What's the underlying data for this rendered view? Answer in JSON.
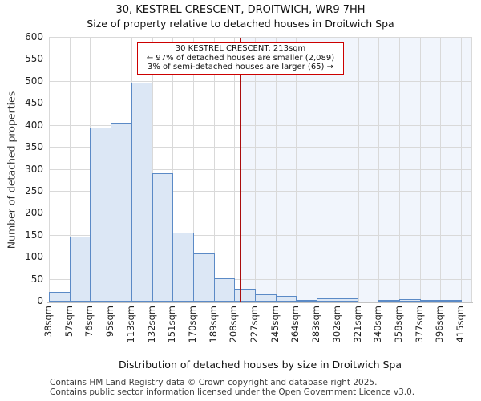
{
  "header": {
    "title": "30, KESTREL CRESCENT, DROITWICH, WR9 7HH",
    "subtitle": "Size of property relative to detached houses in Droitwich Spa"
  },
  "chart_data": {
    "type": "bar",
    "title": "30, KESTREL CRESCENT, DROITWICH, WR9 7HH",
    "subtitle": "Size of property relative to detached houses in Droitwich Spa",
    "xlabel": "Distribution of detached houses by size in Droitwich Spa",
    "ylabel": "Number of detached properties",
    "tick_labels": [
      "38sqm",
      "57sqm",
      "76sqm",
      "95sqm",
      "113sqm",
      "132sqm",
      "151sqm",
      "170sqm",
      "189sqm",
      "208sqm",
      "227sqm",
      "245sqm",
      "264sqm",
      "283sqm",
      "302sqm",
      "321sqm",
      "340sqm",
      "358sqm",
      "377sqm",
      "396sqm",
      "415sqm"
    ],
    "bin_left_edges_sqm": [
      38,
      57,
      76,
      95,
      113,
      132,
      151,
      170,
      189,
      208,
      227,
      245,
      264,
      283,
      302,
      321,
      340,
      358,
      377,
      396
    ],
    "values": [
      22,
      148,
      395,
      407,
      497,
      291,
      157,
      109,
      53,
      29,
      17,
      12,
      4,
      7,
      8,
      0,
      2,
      5,
      2,
      2
    ],
    "ylim": [
      0,
      600
    ],
    "ytick_step": 50,
    "xmin": 38,
    "xmax": 415,
    "grid": true,
    "bar_fill_color": "#dce7f5",
    "bar_edge_color": "#5b8ac6",
    "shade_color": "#f1f5fc",
    "marker": {
      "value": 213,
      "color": "#aa0d0d",
      "line1": "30 KESTREL CRESCENT: 213sqm",
      "line2": "← 97% of detached houses are smaller (2,089)",
      "line3": "3% of semi-detached houses are larger (65) →",
      "box_border_color": "#cc0000"
    }
  },
  "footer": {
    "line1": "Contains HM Land Registry data © Crown copyright and database right 2025.",
    "line2": "Contains public sector information licensed under the Open Government Licence v3.0."
  }
}
